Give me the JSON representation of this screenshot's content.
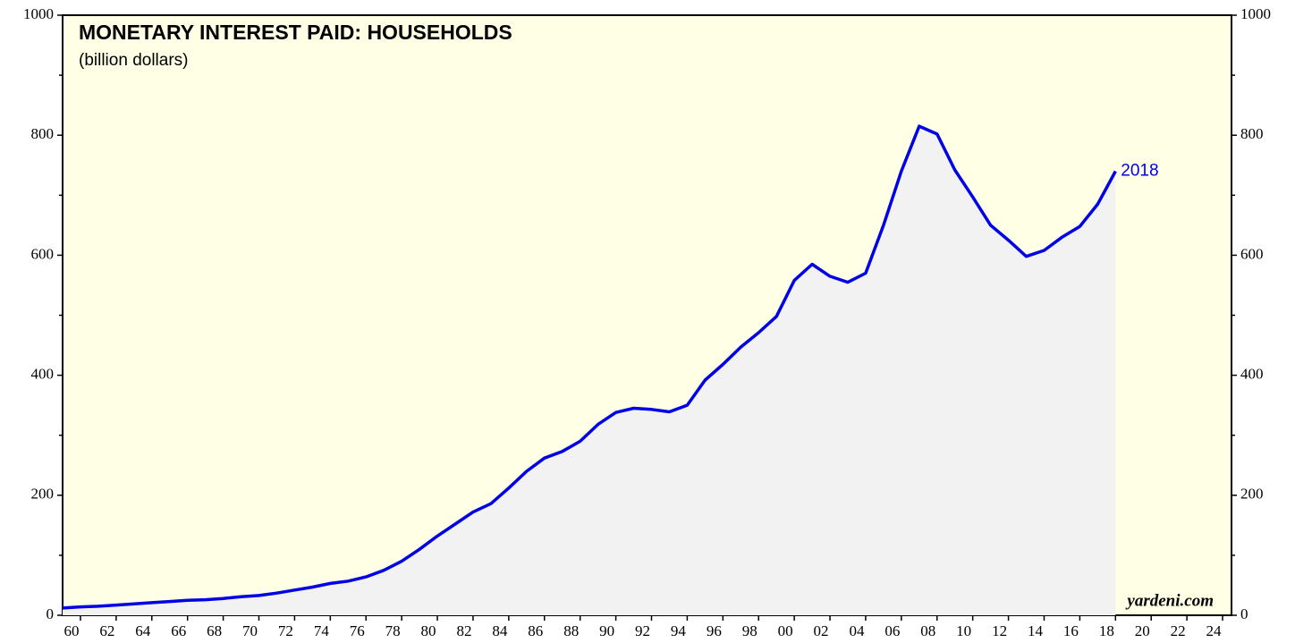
{
  "chart_data": {
    "type": "line",
    "title": "MONETARY INTEREST PAID: HOUSEHOLDS",
    "subtitle": "(billion dollars)",
    "annotation": "2018",
    "source": "yardeni.com",
    "x": [
      1959,
      1960,
      1961,
      1962,
      1963,
      1964,
      1965,
      1966,
      1967,
      1968,
      1969,
      1970,
      1971,
      1972,
      1973,
      1974,
      1975,
      1976,
      1977,
      1978,
      1979,
      1980,
      1981,
      1982,
      1983,
      1984,
      1985,
      1986,
      1987,
      1988,
      1989,
      1990,
      1991,
      1992,
      1993,
      1994,
      1995,
      1996,
      1997,
      1998,
      1999,
      2000,
      2001,
      2002,
      2003,
      2004,
      2005,
      2006,
      2007,
      2008,
      2009,
      2010,
      2011,
      2012,
      2013,
      2014,
      2015,
      2016,
      2017,
      2018
    ],
    "series": [
      {
        "name": "Monetary interest paid: households",
        "color": "#0000e6",
        "values": [
          12,
          14,
          15,
          17,
          19,
          21,
          23,
          25,
          26,
          28,
          31,
          33,
          37,
          42,
          47,
          53,
          57,
          64,
          75,
          90,
          110,
          132,
          152,
          172,
          186,
          212,
          240,
          262,
          273,
          290,
          318,
          338,
          345,
          343,
          339,
          350,
          392,
          418,
          447,
          471,
          498,
          558,
          585,
          565,
          555,
          570,
          650,
          740,
          815,
          802,
          742,
          697,
          650,
          625,
          598,
          608,
          630,
          648,
          685,
          740
        ]
      }
    ],
    "xlim": [
      1959,
      2024.5
    ],
    "ylim": [
      0,
      1000
    ],
    "yticks": [
      0,
      200,
      400,
      600,
      800,
      1000
    ],
    "xticks": [
      {
        "value": 1960,
        "label": "60"
      },
      {
        "value": 1962,
        "label": "62"
      },
      {
        "value": 1964,
        "label": "64"
      },
      {
        "value": 1966,
        "label": "66"
      },
      {
        "value": 1968,
        "label": "68"
      },
      {
        "value": 1970,
        "label": "70"
      },
      {
        "value": 1972,
        "label": "72"
      },
      {
        "value": 1974,
        "label": "74"
      },
      {
        "value": 1976,
        "label": "76"
      },
      {
        "value": 1978,
        "label": "78"
      },
      {
        "value": 1980,
        "label": "80"
      },
      {
        "value": 1982,
        "label": "82"
      },
      {
        "value": 1984,
        "label": "84"
      },
      {
        "value": 1986,
        "label": "86"
      },
      {
        "value": 1988,
        "label": "88"
      },
      {
        "value": 1990,
        "label": "90"
      },
      {
        "value": 1992,
        "label": "92"
      },
      {
        "value": 1994,
        "label": "94"
      },
      {
        "value": 1996,
        "label": "96"
      },
      {
        "value": 1998,
        "label": "98"
      },
      {
        "value": 2000,
        "label": "00"
      },
      {
        "value": 2002,
        "label": "02"
      },
      {
        "value": 2004,
        "label": "04"
      },
      {
        "value": 2006,
        "label": "06"
      },
      {
        "value": 2008,
        "label": "08"
      },
      {
        "value": 2010,
        "label": "10"
      },
      {
        "value": 2012,
        "label": "12"
      },
      {
        "value": 2014,
        "label": "14"
      },
      {
        "value": 2016,
        "label": "16"
      },
      {
        "value": 2018,
        "label": "18"
      },
      {
        "value": 2020,
        "label": "20"
      },
      {
        "value": 2022,
        "label": "22"
      },
      {
        "value": 2024,
        "label": "24"
      }
    ],
    "area_color": "#f2f2f2",
    "background": "#ffffe6"
  }
}
